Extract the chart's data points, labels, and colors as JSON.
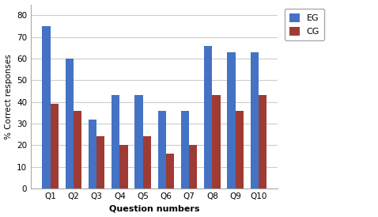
{
  "categories": [
    "Q1",
    "Q2",
    "Q3",
    "Q4",
    "Q5",
    "Q6",
    "Q7",
    "Q8",
    "Q9",
    "Q10"
  ],
  "EG": [
    75,
    60,
    32,
    43,
    43,
    36,
    36,
    66,
    63,
    63
  ],
  "CG": [
    39,
    36,
    24,
    20,
    24,
    16,
    20,
    43,
    36,
    43
  ],
  "EG_color": "#4472C4",
  "CG_color": "#9E3B34",
  "xlabel": "Question numbers",
  "ylabel": "% Correct responses",
  "ylim": [
    0,
    85
  ],
  "yticks": [
    0,
    10,
    20,
    30,
    40,
    50,
    60,
    70,
    80
  ],
  "legend_labels": [
    "EG",
    "CG"
  ],
  "bar_width": 0.35,
  "plot_bg": "#FFFFFF",
  "fig_bg": "#FFFFFF",
  "grid_color": "#CCCCCC"
}
